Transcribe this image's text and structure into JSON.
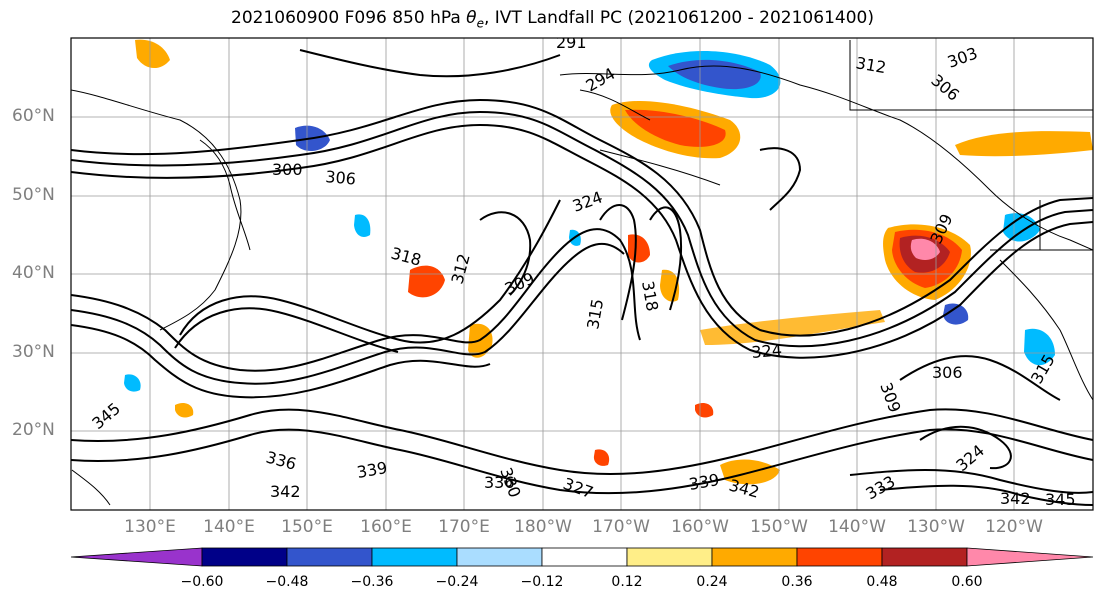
{
  "title": {
    "prefix": "2021060900 F096 850 hPa ",
    "symbol": "θ",
    "subscript": "e",
    "suffix": ", IVT Landfall PC (2021061200 - 2021061400)"
  },
  "axes": {
    "lat_labels": [
      "60°N",
      "50°N",
      "40°N",
      "30°N",
      "20°N"
    ],
    "lon_labels": [
      "130°E",
      "140°E",
      "150°E",
      "160°E",
      "170°E",
      "180°W",
      "170°W",
      "160°W",
      "150°W",
      "140°W",
      "130°W",
      "120°W"
    ]
  },
  "colorbar": {
    "colors": [
      "#9933cc",
      "#000088",
      "#3355cc",
      "#00bbff",
      "#aaddff",
      "#ffffff",
      "#ffee88",
      "#ffaa00",
      "#ff4400",
      "#b22222",
      "#ff88aa"
    ],
    "tick_labels": [
      "−0.60",
      "−0.48",
      "−0.36",
      "−0.24",
      "−0.12",
      "0.12",
      "0.24",
      "0.36",
      "0.48",
      "0.60"
    ]
  },
  "contour_labels": [
    "291",
    "294",
    "303",
    "306",
    "312",
    "300",
    "306",
    "324",
    "318",
    "312",
    "309",
    "318",
    "324",
    "306",
    "309",
    "315",
    "345",
    "336",
    "339",
    "336",
    "330",
    "327",
    "342",
    "339",
    "342",
    "324",
    "333",
    "345",
    "309",
    "342",
    "315"
  ],
  "map_data": {
    "extent": {
      "lon_min": 120,
      "lon_max": 250,
      "lat_min": 10,
      "lat_max": 70
    },
    "shaded_field": "IVT Landfall PC",
    "contour_field": "850 hPa theta-e",
    "contour_units": "K"
  }
}
